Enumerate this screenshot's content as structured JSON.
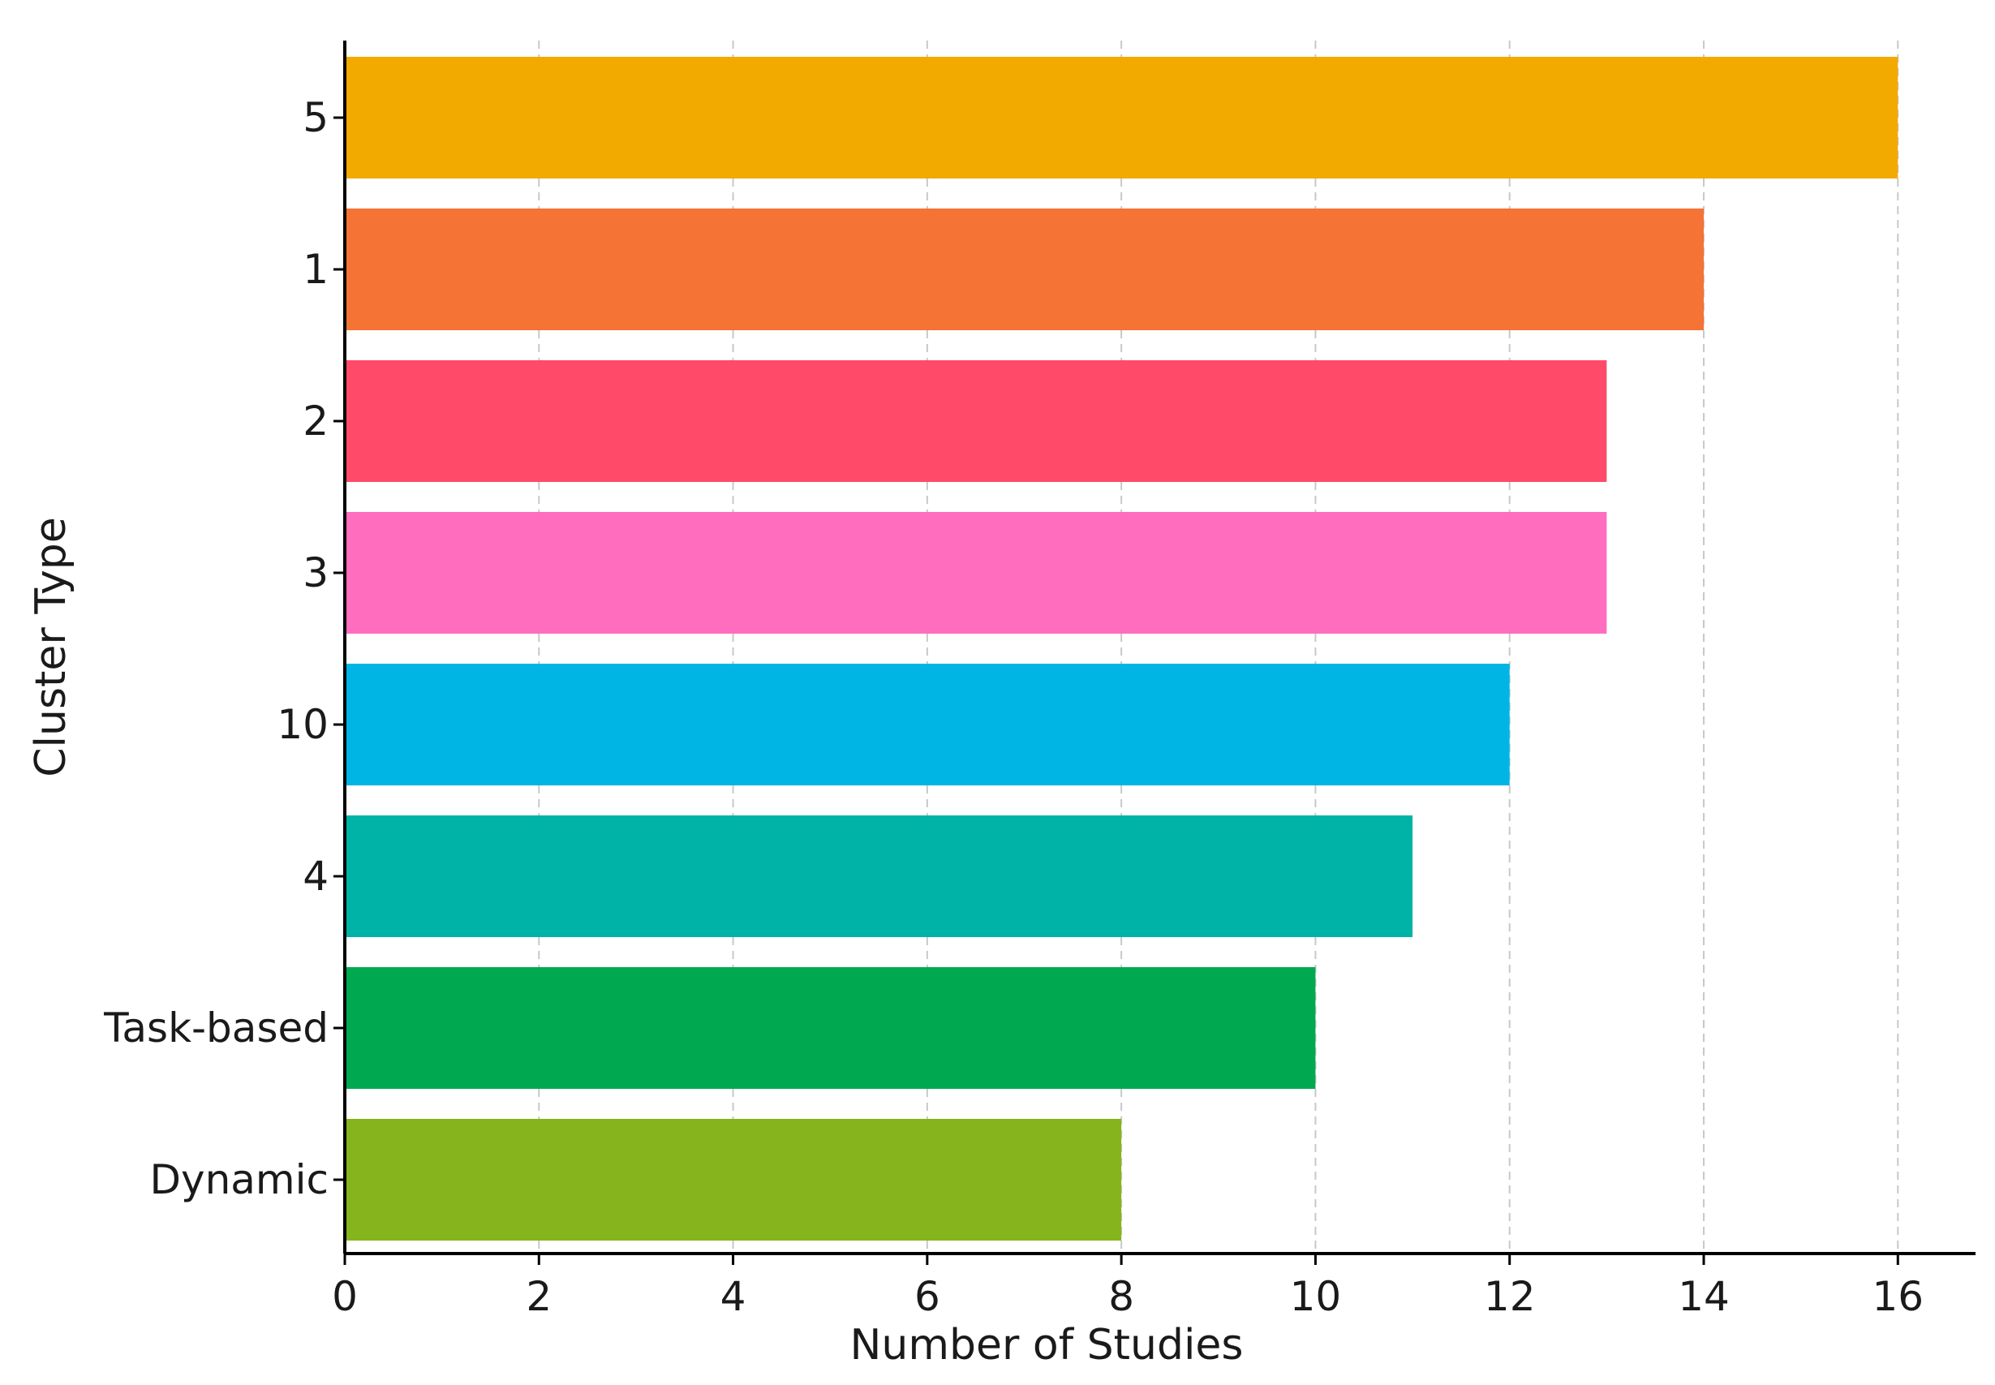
{
  "chart_data": {
    "type": "bar",
    "orientation": "horizontal",
    "title": "",
    "xlabel": "Number of Studies",
    "ylabel": "Cluster Type",
    "xlim": [
      0,
      16.8
    ],
    "xticks": [
      0,
      2,
      4,
      6,
      8,
      10,
      12,
      14,
      16
    ],
    "grid": "x-dashed",
    "categories": [
      "5",
      "1",
      "2",
      "3",
      "10",
      "4",
      "Task-based",
      "Dynamic"
    ],
    "values": [
      16,
      14,
      13,
      13,
      12,
      11,
      10,
      8
    ],
    "colors": [
      "#F2A900",
      "#F47335",
      "#FF4A6A",
      "#FF6DBF",
      "#00B5E3",
      "#00B3A7",
      "#00A94F",
      "#86B41C"
    ]
  }
}
